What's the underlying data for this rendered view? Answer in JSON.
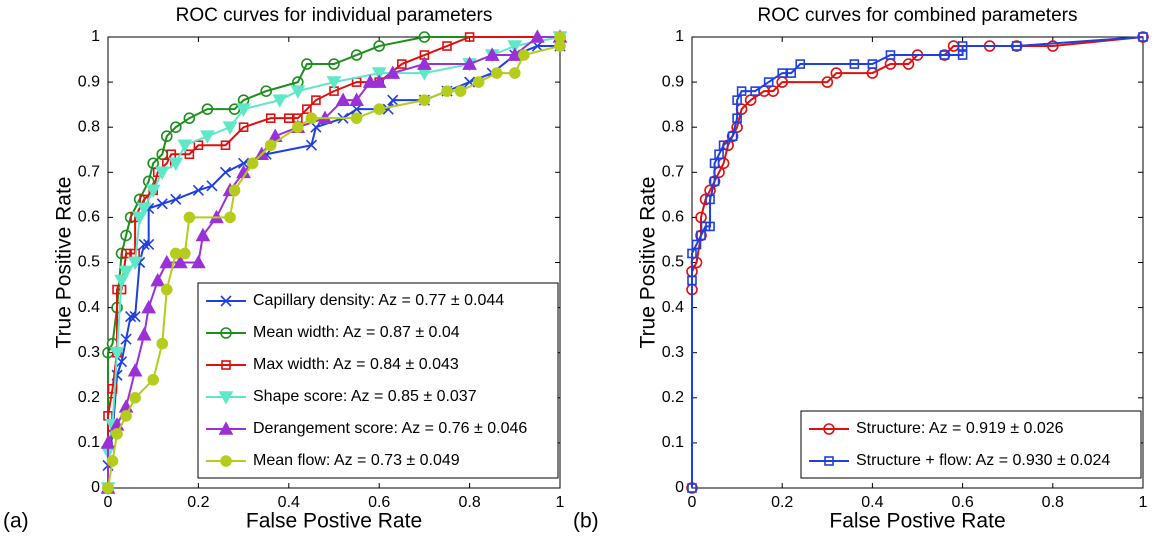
{
  "chart_data": [
    {
      "type": "line",
      "label": "(a)",
      "title": "ROC curves for individual parameters",
      "x_label": "False Postive Rate",
      "y_label": "True Positive Rate",
      "xlim": [
        0,
        1
      ],
      "ylim": [
        0,
        1
      ],
      "xticks": [
        0,
        0.2,
        0.4,
        0.6,
        0.8,
        1
      ],
      "yticks": [
        0,
        0.1,
        0.2,
        0.3,
        0.4,
        0.5,
        0.6,
        0.7,
        0.8,
        0.9,
        1
      ],
      "legend": "lower right",
      "series": [
        {
          "name": "Capillary density: Az = 0.77 ± 0.044",
          "color": "#1f3fe0",
          "marker": "x",
          "x": [
            0,
            0,
            0.01,
            0.02,
            0.03,
            0.04,
            0.05,
            0.06,
            0.07,
            0.08,
            0.09,
            0.09,
            0.12,
            0.15,
            0.2,
            0.23,
            0.26,
            0.3,
            0.35,
            0.45,
            0.46,
            0.52,
            0.55,
            0.62,
            0.63,
            0.7,
            0.75,
            0.8,
            0.85,
            0.9,
            0.95,
            1,
            1
          ],
          "values": [
            0,
            0.05,
            0.12,
            0.25,
            0.28,
            0.33,
            0.38,
            0.38,
            0.5,
            0.54,
            0.54,
            0.62,
            0.63,
            0.64,
            0.66,
            0.67,
            0.7,
            0.72,
            0.74,
            0.76,
            0.8,
            0.82,
            0.84,
            0.84,
            0.86,
            0.86,
            0.88,
            0.9,
            0.92,
            0.96,
            0.98,
            0.98,
            1
          ]
        },
        {
          "name": "Mean width: Az = 0.87 ± 0.04",
          "color": "#1e8f1e",
          "marker": "circle",
          "x": [
            0,
            0,
            0.01,
            0.02,
            0.03,
            0.04,
            0.05,
            0.07,
            0.09,
            0.1,
            0.12,
            0.13,
            0.15,
            0.18,
            0.22,
            0.28,
            0.3,
            0.35,
            0.42,
            0.44,
            0.5,
            0.55,
            0.6,
            0.7,
            1
          ],
          "values": [
            0,
            0.3,
            0.32,
            0.4,
            0.52,
            0.56,
            0.6,
            0.64,
            0.68,
            0.72,
            0.74,
            0.78,
            0.8,
            0.82,
            0.84,
            0.84,
            0.86,
            0.88,
            0.9,
            0.94,
            0.94,
            0.96,
            0.98,
            1,
            1
          ]
        },
        {
          "name": "Max width: Az = 0.84 ± 0.043",
          "color": "#e01010",
          "marker": "square",
          "x": [
            0,
            0,
            0.01,
            0.02,
            0.02,
            0.03,
            0.04,
            0.06,
            0.06,
            0.08,
            0.1,
            0.11,
            0.13,
            0.14,
            0.18,
            0.2,
            0.26,
            0.3,
            0.36,
            0.4,
            0.42,
            0.44,
            0.46,
            0.5,
            0.55,
            0.6,
            0.65,
            0.7,
            0.75,
            0.8,
            1
          ],
          "values": [
            0,
            0.16,
            0.22,
            0.3,
            0.44,
            0.44,
            0.52,
            0.52,
            0.6,
            0.64,
            0.66,
            0.7,
            0.72,
            0.74,
            0.74,
            0.76,
            0.76,
            0.8,
            0.82,
            0.82,
            0.82,
            0.84,
            0.86,
            0.88,
            0.9,
            0.9,
            0.94,
            0.96,
            0.98,
            1,
            1
          ]
        },
        {
          "name": "Shape score: Az = 0.85 ± 0.037",
          "color": "#5fe8c8",
          "marker": "tri-down",
          "x": [
            0,
            0,
            0.01,
            0.02,
            0.03,
            0.04,
            0.06,
            0.07,
            0.08,
            0.1,
            0.12,
            0.15,
            0.17,
            0.22,
            0.27,
            0.3,
            0.38,
            0.42,
            0.5,
            0.6,
            0.7,
            0.8,
            0.85,
            0.9,
            1
          ],
          "values": [
            0,
            0.08,
            0.14,
            0.3,
            0.46,
            0.48,
            0.5,
            0.6,
            0.62,
            0.66,
            0.7,
            0.72,
            0.76,
            0.78,
            0.8,
            0.84,
            0.86,
            0.88,
            0.9,
            0.92,
            0.92,
            0.94,
            0.96,
            0.98,
            1
          ]
        },
        {
          "name": "Derangement score: Az = 0.76 ± 0.046",
          "color": "#9b30d8",
          "marker": "tri-up",
          "x": [
            0,
            0,
            0.02,
            0.04,
            0.06,
            0.08,
            0.09,
            0.11,
            0.13,
            0.16,
            0.2,
            0.21,
            0.24,
            0.27,
            0.3,
            0.34,
            0.37,
            0.42,
            0.48,
            0.52,
            0.55,
            0.58,
            0.6,
            0.63,
            0.7,
            0.8,
            0.85,
            0.9,
            0.95,
            1
          ],
          "values": [
            0,
            0.1,
            0.14,
            0.18,
            0.26,
            0.34,
            0.4,
            0.46,
            0.5,
            0.5,
            0.5,
            0.56,
            0.6,
            0.66,
            0.7,
            0.74,
            0.78,
            0.8,
            0.82,
            0.86,
            0.86,
            0.9,
            0.9,
            0.92,
            0.94,
            0.94,
            0.96,
            0.96,
            1,
            1
          ]
        },
        {
          "name": "Mean flow: Az = 0.73 ± 0.049",
          "color": "#b5cc1c",
          "marker": "dot",
          "x": [
            0,
            0.01,
            0.02,
            0.04,
            0.06,
            0.1,
            0.12,
            0.13,
            0.15,
            0.17,
            0.18,
            0.27,
            0.28,
            0.32,
            0.36,
            0.42,
            0.45,
            0.55,
            0.6,
            0.7,
            0.75,
            0.78,
            0.82,
            0.86,
            0.9,
            0.92,
            1,
            1
          ],
          "values": [
            0,
            0.06,
            0.12,
            0.16,
            0.2,
            0.24,
            0.32,
            0.44,
            0.52,
            0.52,
            0.6,
            0.6,
            0.66,
            0.72,
            0.76,
            0.8,
            0.82,
            0.82,
            0.84,
            0.86,
            0.88,
            0.88,
            0.9,
            0.92,
            0.92,
            0.96,
            0.98,
            1
          ]
        }
      ]
    },
    {
      "type": "line",
      "label": "(b)",
      "title": "ROC curves for combined parameters",
      "x_label": "False Postive Rate",
      "y_label": "True Positive Rate",
      "xlim": [
        0,
        1
      ],
      "ylim": [
        0,
        1
      ],
      "xticks": [
        0,
        0.2,
        0.4,
        0.6,
        0.8,
        1
      ],
      "yticks": [
        0,
        0.1,
        0.2,
        0.3,
        0.4,
        0.5,
        0.6,
        0.7,
        0.8,
        0.9,
        1
      ],
      "legend": "lower right",
      "series": [
        {
          "name": "Structure: Az = 0.919 ± 0.026",
          "color": "#e01010",
          "marker": "circle",
          "x": [
            0,
            0,
            0,
            0.01,
            0.02,
            0.02,
            0.03,
            0.04,
            0.05,
            0.06,
            0.07,
            0.08,
            0.09,
            0.1,
            0.11,
            0.13,
            0.16,
            0.18,
            0.2,
            0.3,
            0.32,
            0.4,
            0.44,
            0.48,
            0.5,
            0.56,
            0.58,
            0.66,
            0.72,
            0.8,
            1
          ],
          "values": [
            0,
            0.44,
            0.48,
            0.5,
            0.56,
            0.6,
            0.64,
            0.66,
            0.68,
            0.7,
            0.72,
            0.76,
            0.78,
            0.8,
            0.84,
            0.86,
            0.88,
            0.88,
            0.9,
            0.9,
            0.92,
            0.92,
            0.94,
            0.94,
            0.96,
            0.96,
            0.98,
            0.98,
            0.98,
            0.98,
            1
          ]
        },
        {
          "name": "Structure + flow: Az = 0.930 ± 0.024",
          "color": "#1f3fe0",
          "marker": "square",
          "x": [
            0,
            0,
            0,
            0.01,
            0.02,
            0.03,
            0.04,
            0.04,
            0.05,
            0.05,
            0.06,
            0.07,
            0.09,
            0.1,
            0.1,
            0.11,
            0.14,
            0.17,
            0.2,
            0.22,
            0.24,
            0.36,
            0.4,
            0.44,
            0.56,
            0.6,
            0.6,
            0.72,
            1
          ],
          "values": [
            0,
            0.46,
            0.52,
            0.54,
            0.56,
            0.58,
            0.58,
            0.64,
            0.68,
            0.72,
            0.74,
            0.76,
            0.78,
            0.82,
            0.86,
            0.88,
            0.88,
            0.9,
            0.92,
            0.92,
            0.94,
            0.94,
            0.94,
            0.96,
            0.96,
            0.96,
            0.98,
            0.98,
            1
          ]
        }
      ]
    }
  ]
}
